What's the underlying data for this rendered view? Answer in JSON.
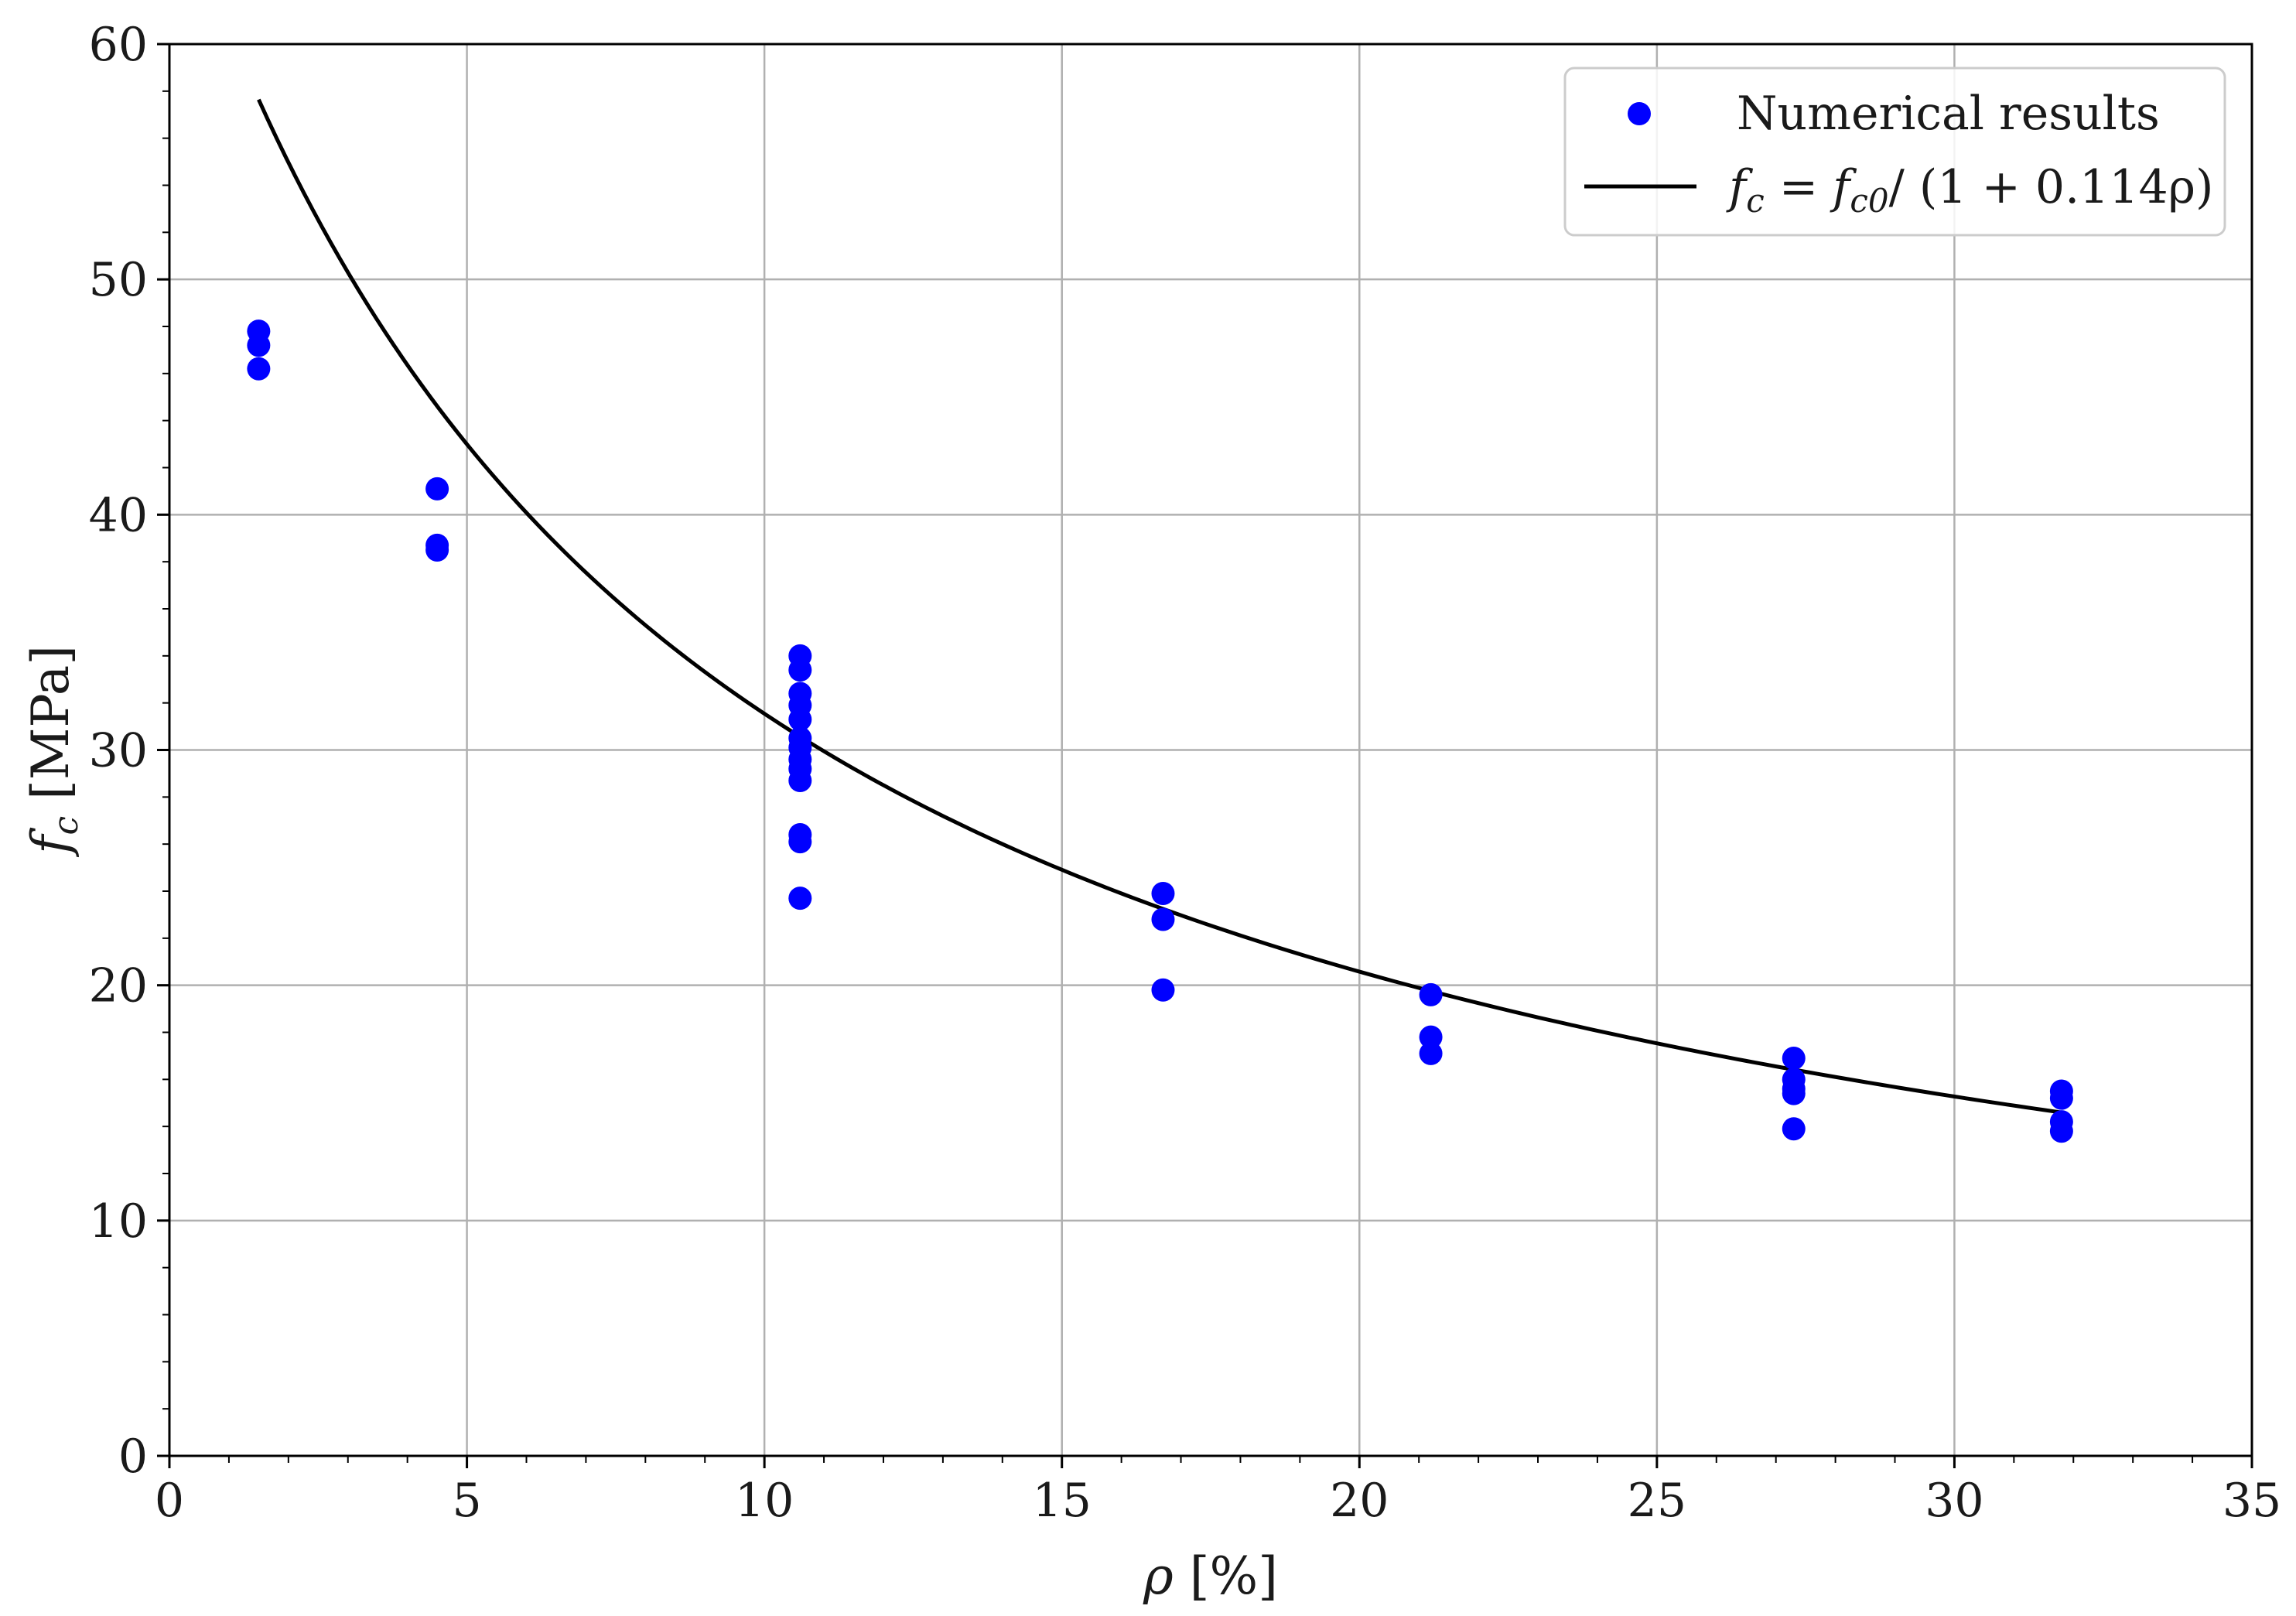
{
  "chart_data": {
    "type": "scatter",
    "xlim": [
      0,
      35
    ],
    "ylim": [
      0,
      60
    ],
    "xticks": [
      0,
      5,
      10,
      15,
      20,
      25,
      30,
      35
    ],
    "yticks": [
      0,
      10,
      20,
      30,
      40,
      50,
      60
    ],
    "xtick_labels": [
      "0",
      "5",
      "10",
      "15",
      "20",
      "25",
      "30",
      "35"
    ],
    "ytick_labels": [
      "0",
      "10",
      "20",
      "30",
      "40",
      "50",
      "60"
    ],
    "grid": true,
    "xlabel": "ρ [%]",
    "ylabel": "fc [MPa]",
    "legend_position": "top-right",
    "series": [
      {
        "name": "Numerical results",
        "kind": "scatter",
        "color": "#0000ff",
        "points": [
          [
            1.5,
            47.8
          ],
          [
            1.5,
            47.2
          ],
          [
            1.5,
            46.2
          ],
          [
            4.5,
            41.1
          ],
          [
            4.5,
            38.7
          ],
          [
            4.5,
            38.5
          ],
          [
            10.6,
            34.0
          ],
          [
            10.6,
            33.4
          ],
          [
            10.6,
            32.4
          ],
          [
            10.6,
            31.9
          ],
          [
            10.6,
            31.3
          ],
          [
            10.6,
            30.5
          ],
          [
            10.6,
            30.1
          ],
          [
            10.6,
            29.6
          ],
          [
            10.6,
            29.2
          ],
          [
            10.6,
            28.7
          ],
          [
            10.6,
            26.4
          ],
          [
            10.6,
            26.1
          ],
          [
            10.6,
            23.7
          ],
          [
            16.7,
            23.9
          ],
          [
            16.7,
            22.8
          ],
          [
            16.7,
            19.8
          ],
          [
            21.2,
            19.6
          ],
          [
            21.2,
            17.8
          ],
          [
            21.2,
            17.1
          ],
          [
            27.3,
            16.9
          ],
          [
            27.3,
            16.0
          ],
          [
            27.3,
            15.6
          ],
          [
            27.3,
            15.4
          ],
          [
            27.3,
            13.9
          ],
          [
            31.8,
            15.5
          ],
          [
            31.8,
            15.2
          ],
          [
            31.8,
            14.2
          ],
          [
            31.8,
            13.8
          ]
        ]
      },
      {
        "name": "fc = fc0/ (1 + 0.114ρ)",
        "kind": "line",
        "color": "#000000",
        "formula": {
          "fc0": 67.5,
          "coefficient": 0.114
        },
        "x_range": [
          1.5,
          31.8
        ]
      }
    ],
    "legend_entries": {
      "scatter": "Numerical results",
      "line_fc": "f",
      "line_fc_sub": "c",
      "line_eq": " = ",
      "line_fc0": "f",
      "line_fc0_sub": "c0",
      "line_rest": "/ (1 + 0.114ρ)"
    },
    "axis_text": {
      "x_rho": "ρ",
      "x_unit": " [%]",
      "y_f": "f",
      "y_sub": "c",
      "y_unit": " [MPa]"
    }
  }
}
